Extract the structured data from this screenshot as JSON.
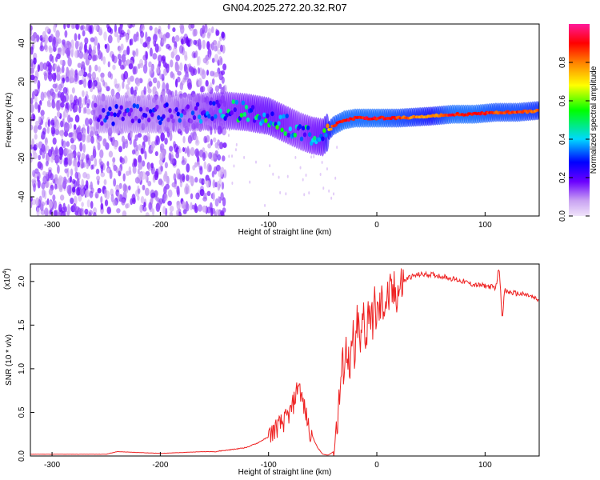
{
  "title": "GN04.2025.272.20.32.R07",
  "chart_data": [
    {
      "type": "heatmap",
      "xlabel": "Height of straight line (km)",
      "ylabel": "Frequency (Hz)",
      "xlim": [
        -320,
        150
      ],
      "ylim": [
        -50,
        50
      ],
      "xticks": [
        -300,
        -200,
        -100,
        0,
        100
      ],
      "yticks": [
        -40,
        -20,
        0,
        20,
        40
      ],
      "colorbar": {
        "label": "Normalized spectral amplitude",
        "range": [
          0,
          1
        ],
        "ticks": [
          "0.0",
          "0.2",
          "0.4",
          "0.6",
          "0.8"
        ],
        "tick_values": [
          0,
          0.2,
          0.4,
          0.6,
          0.8
        ],
        "colors": [
          "#f0e4fa",
          "#6a00ff",
          "#0000ff",
          "#00e5ff",
          "#00ff00",
          "#ffff00",
          "#ff7f00",
          "#ff0000",
          "#ff1a8c"
        ]
      },
      "ridge": {
        "x": [
          -255,
          -230,
          -200,
          -170,
          -140,
          -120,
          -100,
          -85,
          -70,
          -60,
          -50,
          -45,
          -40,
          -30,
          -20,
          0,
          20,
          50,
          70,
          90,
          110,
          130,
          150
        ],
        "y": [
          3,
          3,
          3,
          4,
          5,
          4,
          2,
          -2,
          -6,
          -8,
          -9,
          -6,
          -3,
          0,
          1,
          1,
          1,
          2,
          3,
          3,
          4,
          4,
          5
        ],
        "amplitude": [
          0.3,
          0.3,
          0.3,
          0.35,
          0.45,
          0.5,
          0.55,
          0.5,
          0.45,
          0.5,
          0.55,
          0.75,
          0.9,
          0.95,
          0.95,
          0.95,
          0.9,
          0.8,
          0.95,
          0.95,
          0.9,
          0.9,
          0.85
        ]
      }
    },
    {
      "type": "line",
      "xlabel": "Height of straight line (km)",
      "ylabel": "SNR (10 * v/v)",
      "y_multiplier": "(x10",
      "y_multiplier_exp": "4",
      "y_multiplier_close": ")",
      "xlim": [
        -320,
        150
      ],
      "ylim": [
        0,
        2.2
      ],
      "xticks": [
        -300,
        -200,
        -100,
        0,
        100
      ],
      "yticks": [
        "0.0",
        "0.5",
        "1.0",
        "1.5",
        "2.0"
      ],
      "ytick_values": [
        0,
        0.5,
        1.0,
        1.5,
        2.0
      ],
      "color": "#ee2222",
      "x": [
        -320,
        -250,
        -240,
        -200,
        -160,
        -150,
        -130,
        -120,
        -110,
        -100,
        -95,
        -90,
        -85,
        -80,
        -77,
        -74,
        -72,
        -70,
        -68,
        -65,
        -62,
        -55,
        -50,
        -45,
        -40,
        -35,
        -33,
        -30,
        -27,
        -25,
        -22,
        -20,
        -18,
        -15,
        -12,
        -10,
        -7,
        -5,
        -2,
        0,
        5,
        10,
        15,
        20,
        25,
        30,
        40,
        50,
        60,
        70,
        80,
        90,
        100,
        110,
        113,
        116,
        118,
        120,
        130,
        140,
        150
      ],
      "y": [
        0.02,
        0.02,
        0.05,
        0.03,
        0.05,
        0.05,
        0.08,
        0.1,
        0.15,
        0.22,
        0.3,
        0.35,
        0.4,
        0.5,
        0.6,
        0.75,
        0.85,
        0.7,
        0.6,
        0.45,
        0.3,
        0.1,
        0.02,
        0.01,
        0.05,
        0.6,
        0.9,
        1.1,
        1.3,
        0.8,
        1.4,
        1.0,
        1.6,
        1.2,
        1.7,
        1.3,
        1.8,
        1.5,
        1.7,
        1.6,
        1.75,
        1.8,
        1.85,
        1.9,
        2.0,
        2.05,
        2.08,
        2.08,
        2.06,
        2.03,
        2.0,
        1.96,
        1.95,
        1.93,
        2.18,
        1.55,
        1.9,
        1.88,
        1.86,
        1.84,
        1.78
      ]
    }
  ]
}
